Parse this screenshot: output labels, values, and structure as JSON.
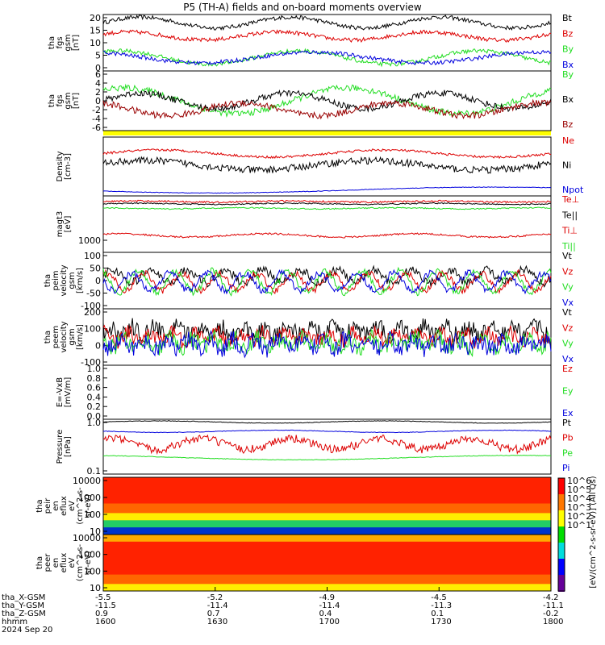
{
  "title": "P5 (TH-A) fields and on-board moments overview",
  "colors": {
    "black": "#000000",
    "red": "#dd0000",
    "green": "#22dd22",
    "blue": "#0000dd",
    "yellow": "#ffff00",
    "darkred": "#990000"
  },
  "chart_data": {
    "type": "line",
    "panels": [
      {
        "id": "fgs-gsm",
        "ylabel": [
          "tha",
          "fgs",
          "gsm",
          "[nT]"
        ],
        "yticks": [
          "20",
          "15",
          "10",
          "5",
          "0"
        ],
        "ylim": [
          0,
          21
        ],
        "series": [
          {
            "name": "Bt",
            "color": "black"
          },
          {
            "name": "Bz",
            "color": "red"
          },
          {
            "name": "By",
            "color": "green"
          },
          {
            "name": "Bx",
            "color": "blue"
          }
        ]
      },
      {
        "id": "fgs-gsm-gse",
        "ylabel": [
          "tha",
          "fgs",
          "gsm",
          "[nT]"
        ],
        "yticks": [
          "6",
          "4",
          "2",
          "0",
          "-2",
          "-4",
          "-6"
        ],
        "ylim": [
          -7,
          7
        ],
        "series": [
          {
            "name": "By",
            "color": "green"
          },
          {
            "name": "Bx",
            "color": "black"
          },
          {
            "name": "Bz",
            "color": "darkred"
          }
        ]
      },
      {
        "id": "density",
        "ylabel": [
          "Density",
          "[cm-3]"
        ],
        "yticks": [],
        "series": [
          {
            "name": "Ne",
            "color": "red"
          },
          {
            "name": "Ni",
            "color": "black"
          },
          {
            "name": "Npot",
            "color": "blue"
          }
        ]
      },
      {
        "id": "temperature",
        "ylabel": [
          "magt3",
          "[eV]"
        ],
        "yticks": [
          "1000"
        ],
        "series": [
          {
            "name": "Te⊥",
            "color": "red"
          },
          {
            "name": "Te||",
            "color": "black"
          },
          {
            "name": "Ti⊥",
            "color": "red"
          },
          {
            "name": "Ti||",
            "color": "green"
          }
        ]
      },
      {
        "id": "peim-velocity",
        "ylabel": [
          "tha",
          "peim",
          "velocity",
          "gsm",
          "[km/s]"
        ],
        "yticks": [
          "100",
          "50",
          "0",
          "-50",
          "-100"
        ],
        "ylim": [
          -125,
          135
        ],
        "series": [
          {
            "name": "Vt",
            "color": "black"
          },
          {
            "name": "Vz",
            "color": "red"
          },
          {
            "name": "Vy",
            "color": "green"
          },
          {
            "name": "Vx",
            "color": "blue"
          }
        ]
      },
      {
        "id": "peem-velocity",
        "ylabel": [
          "tha",
          "peem",
          "velocity",
          "gsm",
          "[km/s]"
        ],
        "yticks": [
          "200",
          "100",
          "0",
          "-100"
        ],
        "ylim": [
          -150,
          230
        ],
        "series": [
          {
            "name": "Vt",
            "color": "black"
          },
          {
            "name": "Vz",
            "color": "red"
          },
          {
            "name": "Vy",
            "color": "green"
          },
          {
            "name": "Vx",
            "color": "blue"
          }
        ]
      },
      {
        "id": "efield",
        "ylabel": [
          "E=-VxB",
          "[mV/m]"
        ],
        "yticks": [
          "1.0",
          "0.8",
          "0.6",
          "0.4",
          "0.2",
          "0.0"
        ],
        "ylim": [
          0,
          1
        ],
        "series": [
          {
            "name": "Ez",
            "color": "red"
          },
          {
            "name": "Ey",
            "color": "green"
          },
          {
            "name": "Ex",
            "color": "blue"
          }
        ]
      },
      {
        "id": "pressure",
        "ylabel": [
          "Pressure",
          "[nPa]"
        ],
        "yticks": [
          "1.0",
          "0.1"
        ],
        "series": [
          {
            "name": "Pt",
            "color": "black"
          },
          {
            "name": "Pb",
            "color": "red"
          },
          {
            "name": "Pe",
            "color": "green"
          },
          {
            "name": "Pi",
            "color": "blue"
          }
        ]
      },
      {
        "id": "peir-spec",
        "type": "heatmap",
        "ylabel": [
          "tha",
          "peir",
          "en",
          "eflux",
          "eV",
          "(cm^2-s-",
          "sr-eV)"
        ],
        "yticks": [
          "10000",
          "1000",
          "100",
          "10"
        ]
      },
      {
        "id": "peer-spec",
        "type": "heatmap",
        "ylabel": [
          "tha",
          "peer",
          "en",
          "eflux",
          "eV",
          "(cm^2-s-",
          "sr-eV)"
        ],
        "yticks": [
          "10000",
          "1000",
          "100",
          "10"
        ]
      }
    ],
    "colorbar_label": "[eV/(cm^2-s-sr-eV)] (All Qs)",
    "colorbar_ticks": [
      "10^6",
      "10^5",
      "10^4",
      "10^3",
      "10^2",
      "10^1"
    ],
    "x_axis": {
      "rows": [
        {
          "name": "tha_X-GSM",
          "values": [
            "-5.5",
            "-5.2",
            "-4.9",
            "-4.5",
            "-4.2"
          ]
        },
        {
          "name": "tha_Y-GSM",
          "values": [
            "-11.5",
            "-11.4",
            "-11.4",
            "-11.3",
            "-11.1"
          ]
        },
        {
          "name": "tha_Z-GSM",
          "values": [
            "0.9",
            "0.7",
            "0.4",
            "0.1",
            "-0.2"
          ]
        },
        {
          "name": "hhmm",
          "values": [
            "1600",
            "1630",
            "1700",
            "1730",
            "1800"
          ]
        }
      ],
      "date": "2024 Sep 20"
    }
  }
}
